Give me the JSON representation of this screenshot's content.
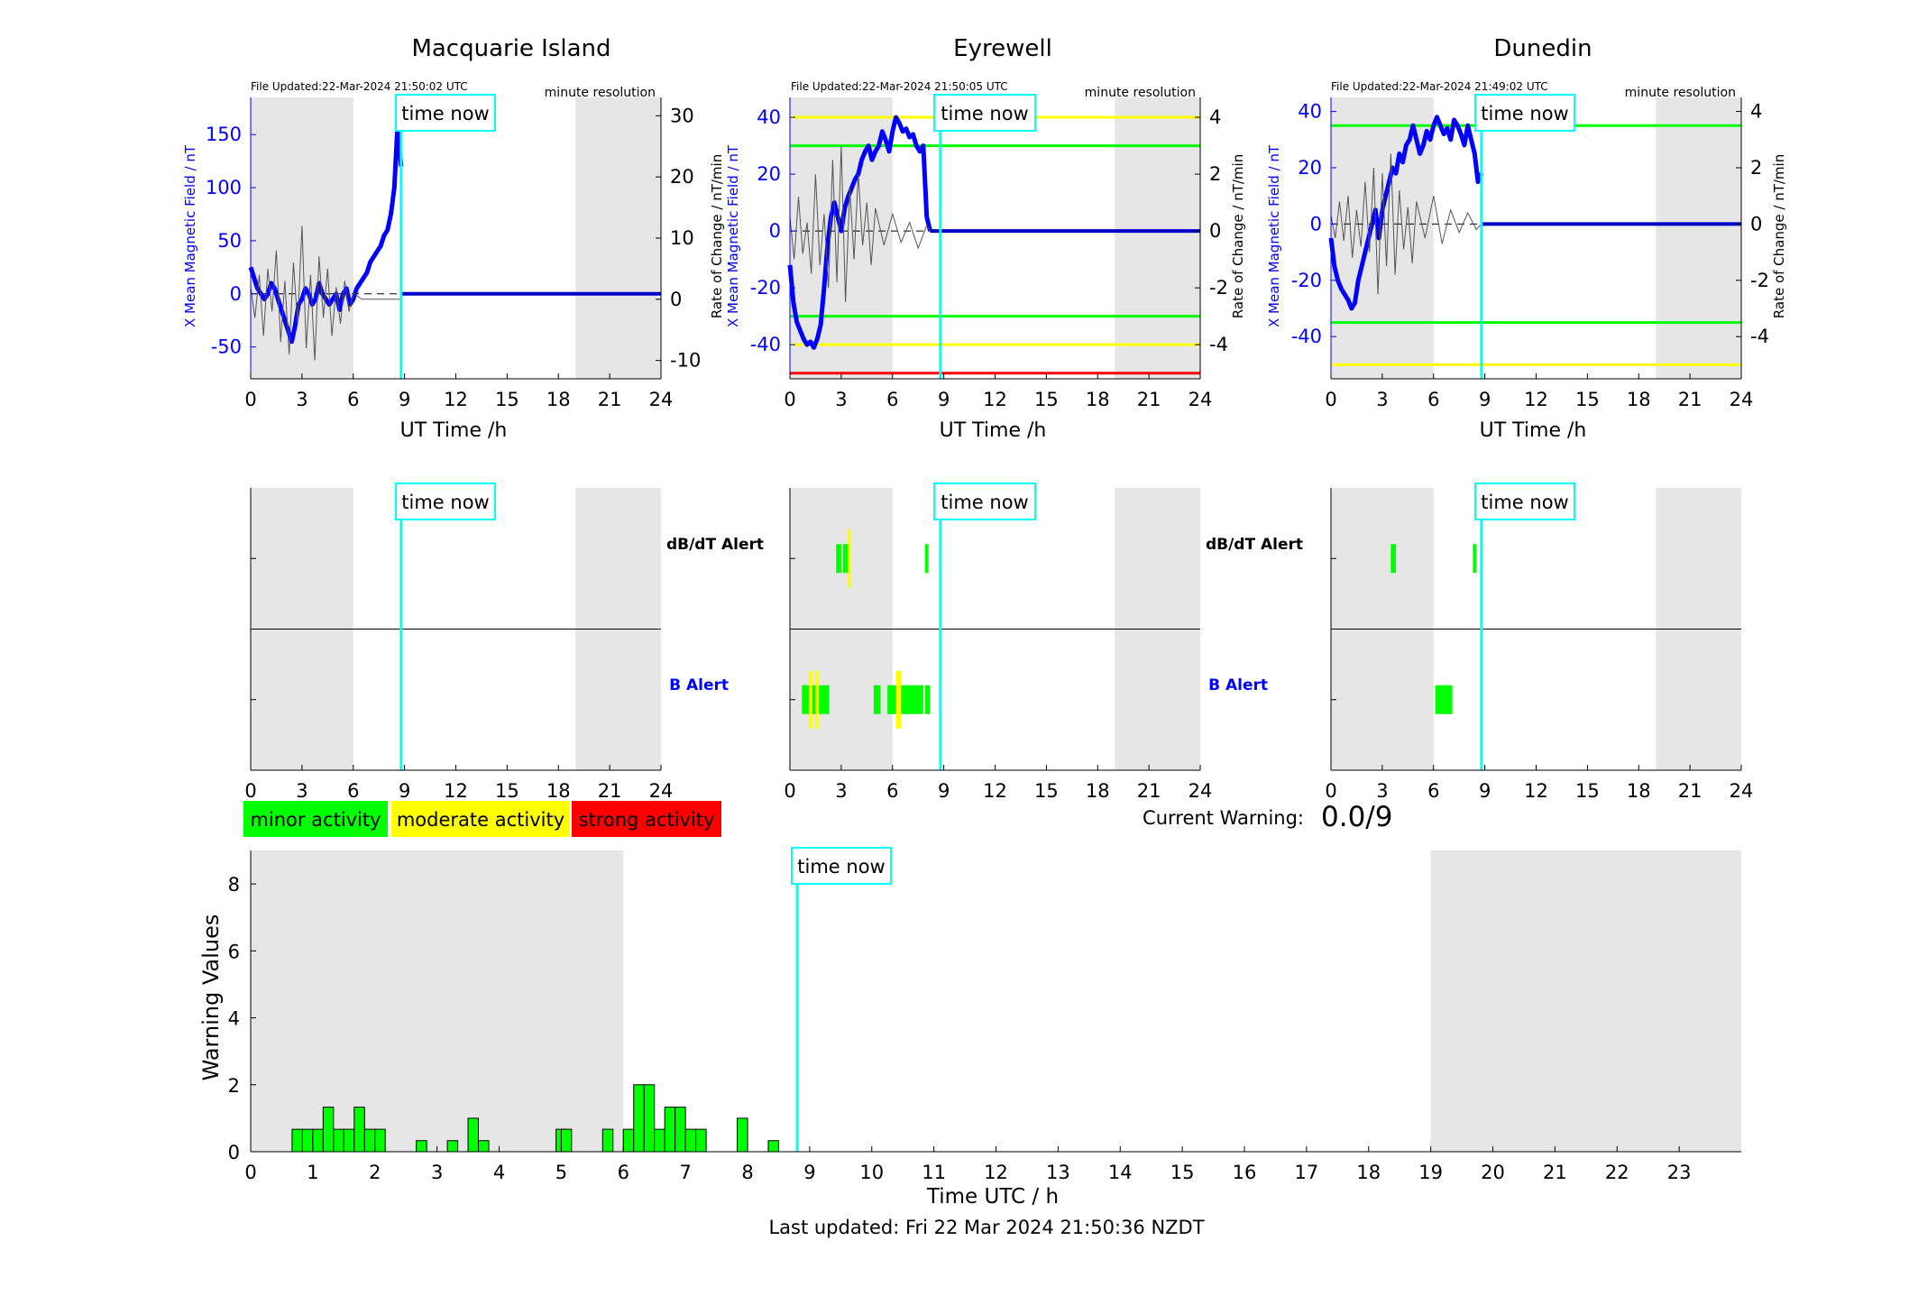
{
  "stations": [
    {
      "title": "Macquarie Island",
      "file_updated": "File Updated:22-Mar-2024 21:50:02 UTC",
      "resolution": "minute resolution",
      "ylabel_left": "X Mean Magnetic Field / nT",
      "ylabel_right": "Rate of Change / nT/min",
      "xlabel": "UT Time /h",
      "left_ticks": [
        -50,
        0,
        50,
        100,
        150
      ],
      "right_ticks": [
        -10,
        0,
        10,
        20,
        30
      ],
      "time_now_label": "time now"
    },
    {
      "title": "Eyrewell",
      "file_updated": "File Updated:22-Mar-2024 21:50:05 UTC",
      "resolution": "minute resolution",
      "ylabel_left": "X Mean Magnetic Field / nT",
      "ylabel_right": "Rate of Change / nT/min",
      "xlabel": "UT Time /h",
      "left_ticks": [
        -40,
        -20,
        0,
        20,
        40
      ],
      "right_ticks": [
        -4,
        -2,
        0,
        2,
        4
      ],
      "time_now_label": "time now"
    },
    {
      "title": "Dunedin",
      "file_updated": "File Updated:22-Mar-2024 21:49:02 UTC",
      "resolution": "minute resolution",
      "ylabel_left": "X Mean Magnetic Field / nT",
      "ylabel_right": "Rate of Change / nT/min",
      "xlabel": "UT Time /h",
      "left_ticks": [
        -40,
        -20,
        0,
        20,
        40
      ],
      "right_ticks": [
        -4,
        -2,
        0,
        2,
        4
      ],
      "time_now_label": "time now"
    }
  ],
  "alerts": {
    "dbdt_label": "dB/dT Alert",
    "b_label": "B Alert",
    "time_now_label": "time now"
  },
  "legend": {
    "minor": "minor activity",
    "moderate": "moderate activity",
    "strong": "strong activity"
  },
  "current_warning": {
    "label": "Current Warning:",
    "value": "0.0/9"
  },
  "bottom": {
    "ylabel": "Warning Values",
    "xlabel": "Time UTC / h",
    "time_now_label": "time now",
    "last_updated": "Last updated: Fri 22 Mar 2024 21:50:36 NZDT"
  },
  "colors": {
    "minor": "#00ff00",
    "moderate": "#ffff00",
    "strong": "#ff0000",
    "field_line": "#0000ff",
    "time_now": "#00ffff",
    "night_shade": "#e6e6e6"
  },
  "chart_data": [
    {
      "type": "line",
      "station": "Macquarie Island",
      "x_range_hours": [
        0,
        24
      ],
      "x_ticks": [
        0,
        3,
        6,
        9,
        12,
        15,
        18,
        21,
        24
      ],
      "ylim_left": [
        -80,
        185
      ],
      "ylim_right": [
        -13,
        33
      ],
      "night_shading_hours": [
        [
          0,
          6
        ],
        [
          19,
          24
        ]
      ],
      "time_now_hours": 8.8,
      "series": [
        {
          "axis": "left",
          "x": [
            0,
            0.2,
            0.4,
            0.6,
            0.8,
            1.0,
            1.2,
            1.4,
            1.6,
            1.8,
            2.0,
            2.2,
            2.4,
            2.6,
            2.8,
            3.0,
            3.2,
            3.4,
            3.6,
            3.8,
            4.0,
            4.2,
            4.4,
            4.6,
            4.8,
            5.0,
            5.2,
            5.4,
            5.6,
            5.8,
            6.0,
            6.2,
            6.4,
            6.6,
            6.8,
            7.0,
            7.2,
            7.4,
            7.6,
            7.8,
            8.0,
            8.2,
            8.4,
            8.6,
            8.8
          ],
          "y": [
            25,
            15,
            5,
            0,
            -5,
            0,
            10,
            5,
            -5,
            -15,
            -25,
            -35,
            -45,
            -30,
            -10,
            -5,
            5,
            0,
            -10,
            -5,
            10,
            0,
            -5,
            -10,
            -5,
            0,
            -15,
            0,
            5,
            -10,
            -5,
            5,
            10,
            15,
            20,
            30,
            35,
            40,
            45,
            55,
            60,
            75,
            100,
            160,
            120
          ]
        },
        {
          "axis": "right",
          "x": [
            0,
            0.25,
            0.5,
            0.75,
            1.0,
            1.25,
            1.5,
            1.75,
            2.0,
            2.25,
            2.5,
            2.75,
            3.0,
            3.25,
            3.5,
            3.75,
            4.0,
            4.25,
            4.5,
            4.75,
            5.0,
            5.25,
            5.5,
            5.75,
            6.0,
            6.5,
            7.0,
            7.5,
            8.0,
            8.5,
            8.8
          ],
          "y": [
            2,
            -3,
            4,
            -6,
            5,
            -2,
            8,
            -7,
            3,
            -9,
            6,
            -4,
            12,
            -8,
            4,
            -10,
            7,
            -3,
            5,
            -6,
            2,
            -4,
            3,
            -2,
            1,
            0,
            0,
            0,
            0,
            0,
            0
          ]
        },
        {
          "name": "flat_after_now",
          "axis": "left",
          "x": [
            8.8,
            24
          ],
          "y": [
            0,
            0
          ]
        }
      ]
    },
    {
      "type": "line",
      "station": "Eyrewell",
      "x_range_hours": [
        0,
        24
      ],
      "x_ticks": [
        0,
        3,
        6,
        9,
        12,
        15,
        18,
        21,
        24
      ],
      "ylim_left": [
        -52,
        47
      ],
      "ylim_right": [
        -5.2,
        4.7
      ],
      "night_shading_hours": [
        [
          0,
          6
        ],
        [
          19,
          24
        ]
      ],
      "time_now_hours": 8.8,
      "thresholds_right": [
        {
          "value": 4,
          "level": "moderate"
        },
        {
          "value": 3,
          "level": "minor"
        },
        {
          "value": -3,
          "level": "minor"
        },
        {
          "value": -4,
          "level": "moderate"
        },
        {
          "value": -5,
          "level": "strong"
        }
      ],
      "series": [
        {
          "axis": "left",
          "x": [
            0,
            0.2,
            0.4,
            0.6,
            0.8,
            1.0,
            1.2,
            1.4,
            1.6,
            1.8,
            2.0,
            2.2,
            2.4,
            2.6,
            2.8,
            3.0,
            3.2,
            3.4,
            3.6,
            3.8,
            4.0,
            4.2,
            4.4,
            4.6,
            4.8,
            5.0,
            5.2,
            5.4,
            5.6,
            5.8,
            6.0,
            6.2,
            6.4,
            6.6,
            6.8,
            7.0,
            7.2,
            7.4,
            7.6,
            7.8,
            8.0,
            8.2
          ],
          "y": [
            -12,
            -25,
            -32,
            -35,
            -38,
            -40,
            -39,
            -41,
            -38,
            -33,
            -20,
            -5,
            5,
            10,
            5,
            0,
            8,
            12,
            15,
            18,
            20,
            25,
            28,
            30,
            25,
            28,
            30,
            35,
            32,
            28,
            35,
            40,
            38,
            35,
            36,
            33,
            34,
            30,
            28,
            30,
            5,
            0
          ]
        },
        {
          "axis": "right",
          "x": [
            0,
            0.25,
            0.5,
            0.75,
            1.0,
            1.25,
            1.5,
            1.75,
            2.0,
            2.25,
            2.5,
            2.75,
            3.0,
            3.25,
            3.5,
            3.75,
            4.0,
            4.25,
            4.5,
            4.75,
            5.0,
            5.5,
            6.0,
            6.5,
            7.0,
            7.5,
            8.0,
            8.2
          ],
          "y": [
            0.5,
            -1,
            1.2,
            -0.8,
            0.3,
            -1.5,
            2,
            -1.2,
            0.6,
            -2,
            2.5,
            -1.8,
            3,
            -2.5,
            1.5,
            -1,
            2,
            -0.5,
            1,
            -1.2,
            0.8,
            -0.5,
            0.6,
            -0.4,
            0.3,
            -0.6,
            0.2,
            0
          ]
        },
        {
          "name": "flat_after_now",
          "axis": "left",
          "x": [
            8.2,
            24
          ],
          "y": [
            0,
            0
          ]
        }
      ]
    },
    {
      "type": "line",
      "station": "Dunedin",
      "x_range_hours": [
        0,
        24
      ],
      "x_ticks": [
        0,
        3,
        6,
        9,
        12,
        15,
        18,
        21,
        24
      ],
      "ylim_left": [
        -55,
        45
      ],
      "ylim_right": [
        -5.5,
        4.5
      ],
      "night_shading_hours": [
        [
          0,
          6
        ],
        [
          19,
          24
        ]
      ],
      "time_now_hours": 8.8,
      "thresholds_right": [
        {
          "value": 3.5,
          "level": "minor"
        },
        {
          "value": -3.5,
          "level": "minor"
        },
        {
          "value": -5,
          "level": "moderate"
        }
      ],
      "series": [
        {
          "axis": "left",
          "x": [
            0,
            0.2,
            0.4,
            0.6,
            0.8,
            1.0,
            1.2,
            1.4,
            1.6,
            1.8,
            2.0,
            2.2,
            2.4,
            2.6,
            2.8,
            3.0,
            3.2,
            3.4,
            3.6,
            3.8,
            4.0,
            4.2,
            4.4,
            4.6,
            4.8,
            5.0,
            5.2,
            5.4,
            5.6,
            5.8,
            6.0,
            6.2,
            6.4,
            6.6,
            6.8,
            7.0,
            7.2,
            7.4,
            7.6,
            7.8,
            8.0,
            8.2,
            8.4,
            8.6,
            8.8
          ],
          "y": [
            -5,
            -15,
            -20,
            -23,
            -25,
            -27,
            -30,
            -28,
            -20,
            -15,
            -10,
            -5,
            0,
            5,
            -5,
            5,
            10,
            15,
            20,
            18,
            25,
            22,
            28,
            30,
            35,
            30,
            25,
            28,
            33,
            30,
            35,
            38,
            35,
            32,
            34,
            30,
            37,
            35,
            32,
            28,
            35,
            30,
            25,
            15,
            18
          ]
        },
        {
          "axis": "right",
          "x": [
            0,
            0.25,
            0.5,
            0.75,
            1.0,
            1.25,
            1.5,
            1.75,
            2.0,
            2.25,
            2.5,
            2.75,
            3.0,
            3.25,
            3.5,
            3.75,
            4.0,
            4.25,
            4.5,
            4.75,
            5.0,
            5.5,
            6.0,
            6.5,
            7.0,
            7.5,
            8.0,
            8.5,
            8.8
          ],
          "y": [
            0.3,
            -0.5,
            0.8,
            -0.6,
            1,
            -1.2,
            0.5,
            -0.8,
            1.5,
            -1,
            2,
            -2.5,
            1.8,
            -1.5,
            2.5,
            -1.8,
            1.2,
            -0.9,
            0.6,
            -1.4,
            0.8,
            -0.5,
            1.0,
            -0.7,
            0.5,
            -0.3,
            0.4,
            -0.2,
            0
          ]
        },
        {
          "name": "flat_after_now",
          "axis": "left",
          "x": [
            8.8,
            24
          ],
          "y": [
            0,
            0
          ]
        }
      ]
    },
    {
      "type": "bar",
      "name": "alerts",
      "rows": [
        "dB/dT Alert",
        "B Alert"
      ],
      "x_range_hours": [
        0,
        24
      ],
      "time_now_hours": 8.8,
      "panels": [
        {
          "station": "Macquarie Island",
          "dbdt": [],
          "b": []
        },
        {
          "station": "Eyrewell",
          "dbdt": [
            [
              2.7,
              3.0,
              "minor"
            ],
            [
              3.1,
              3.5,
              "minor"
            ],
            [
              3.4,
              3.5,
              "moderate"
            ],
            [
              7.9,
              8.1,
              "minor"
            ]
          ],
          "b": [
            [
              0.7,
              2.3,
              "minor"
            ],
            [
              1.1,
              1.3,
              "moderate"
            ],
            [
              1.5,
              1.7,
              "moderate"
            ],
            [
              4.9,
              5.3,
              "minor"
            ],
            [
              5.7,
              7.8,
              "minor"
            ],
            [
              6.2,
              6.5,
              "moderate"
            ],
            [
              7.9,
              8.2,
              "minor"
            ]
          ]
        },
        {
          "station": "Dunedin",
          "dbdt": [
            [
              3.5,
              3.8,
              "minor"
            ],
            [
              8.3,
              8.5,
              "minor"
            ]
          ],
          "b": [
            [
              6.1,
              7.1,
              "minor"
            ]
          ]
        }
      ]
    },
    {
      "type": "bar",
      "name": "warning_values",
      "xlabel": "Time UTC / h",
      "ylabel": "Warning Values",
      "xlim": [
        0,
        24
      ],
      "ylim": [
        0,
        9
      ],
      "x_ticks": [
        0,
        1,
        2,
        3,
        4,
        5,
        6,
        7,
        8,
        9,
        10,
        11,
        12,
        13,
        14,
        15,
        16,
        17,
        18,
        19,
        20,
        21,
        22,
        23
      ],
      "y_ticks": [
        0,
        2,
        4,
        6,
        8
      ],
      "night_shading_hours": [
        [
          0,
          6
        ],
        [
          19,
          24
        ]
      ],
      "time_now_hours": 8.8,
      "x": [
        0.75,
        0.917,
        1.083,
        1.25,
        1.417,
        1.583,
        1.75,
        1.917,
        2.083,
        2.75,
        3.25,
        3.583,
        3.75,
        5.0,
        5.083,
        5.75,
        6.083,
        6.25,
        6.417,
        6.583,
        6.75,
        6.917,
        7.083,
        7.25,
        7.917,
        8.417
      ],
      "values": [
        0.67,
        0.67,
        0.67,
        1.33,
        0.67,
        0.67,
        1.33,
        0.67,
        0.67,
        0.33,
        0.33,
        1.0,
        0.33,
        0.67,
        0.67,
        0.67,
        0.67,
        2.0,
        2.0,
        0.67,
        1.33,
        1.33,
        0.67,
        0.67,
        1.0,
        0.33
      ],
      "bar_width_hours": 0.1667
    }
  ]
}
